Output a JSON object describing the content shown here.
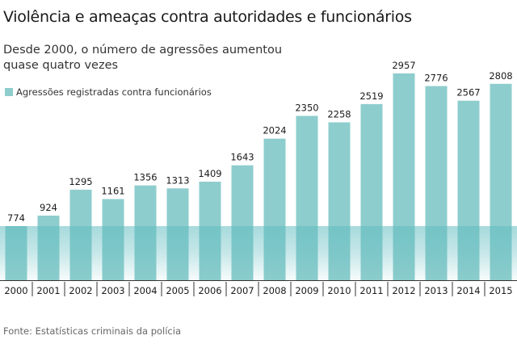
{
  "title": "Violência e ameaças contra autoridades e funcionários",
  "subtitle": "Desde 2000, o número de agressões aumentou quase quatro vezes",
  "source": "Fonte: Estatísticas criminais da polícia",
  "colors": {
    "bar": "#8ecdcd",
    "band": "#5fbcc0",
    "axis": "#333333"
  },
  "chart_data": {
    "type": "bar",
    "title": "Violência e ameaças contra autoridades e funcionários",
    "categories": [
      "2000",
      "2001",
      "2002",
      "2003",
      "2004",
      "2005",
      "2006",
      "2007",
      "2008",
      "2009",
      "2010",
      "2011",
      "2012",
      "2013",
      "2014",
      "2015"
    ],
    "series": [
      {
        "name": "Agressões registradas contra funcionários",
        "values": [
          774,
          924,
          1295,
          1161,
          1356,
          1313,
          1409,
          1643,
          2024,
          2350,
          2258,
          2519,
          2957,
          2776,
          2567,
          2808
        ]
      }
    ],
    "xlabel": "",
    "ylabel": "",
    "ylim": [
      0,
      3000
    ],
    "grid": false,
    "legend": "top-left"
  }
}
